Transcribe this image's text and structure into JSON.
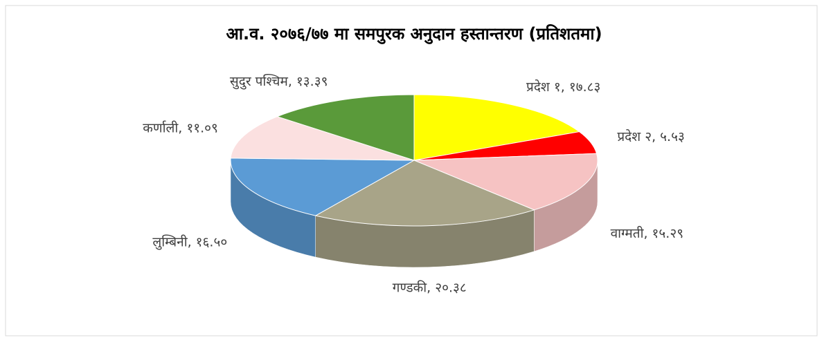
{
  "chart_data": {
    "type": "pie3d",
    "title": "आ.व. २०७६/७७ मा समपुरक अनुदान हस्तान्तरण (प्रतिशतमा)",
    "categories": [
      "प्रदेश १,",
      "प्रदेश २,",
      "वाग्मती,",
      "गण्डकी,",
      "लुम्बिनी,",
      "कर्णाली,",
      "सुदुर पश्चिम,"
    ],
    "values": [
      17.83,
      5.53,
      15.29,
      20.38,
      16.5,
      11.09,
      13.39
    ],
    "value_labels": [
      "१७.८३",
      "५.५३",
      "१५.२९",
      "२०.३८",
      "१६.५०",
      "११.०९",
      "१३.३९"
    ],
    "colors": [
      "#ffff00",
      "#ff0000",
      "#f6c3c3",
      "#a8a488",
      "#5b9bd5",
      "#fbe0e0",
      "#5a9a3a"
    ]
  }
}
